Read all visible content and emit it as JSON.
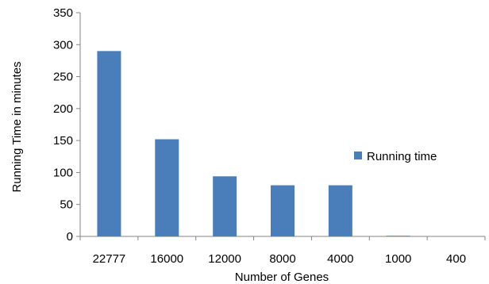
{
  "chart_data": {
    "type": "bar",
    "categories": [
      "22777",
      "16000",
      "12000",
      "8000",
      "4000",
      "1000",
      "400"
    ],
    "series": [
      {
        "name": "Running time",
        "values": [
          290,
          152,
          94,
          80,
          80,
          1,
          0
        ],
        "color": "#4a7ebb"
      }
    ],
    "xlabel": "Number of Genes",
    "ylabel": "Running Time in minutes",
    "ylim": [
      0,
      350
    ],
    "yticks": [
      "0",
      "50",
      "100",
      "150",
      "200",
      "250",
      "300",
      "350"
    ],
    "grid": false,
    "legend_position": "right"
  }
}
